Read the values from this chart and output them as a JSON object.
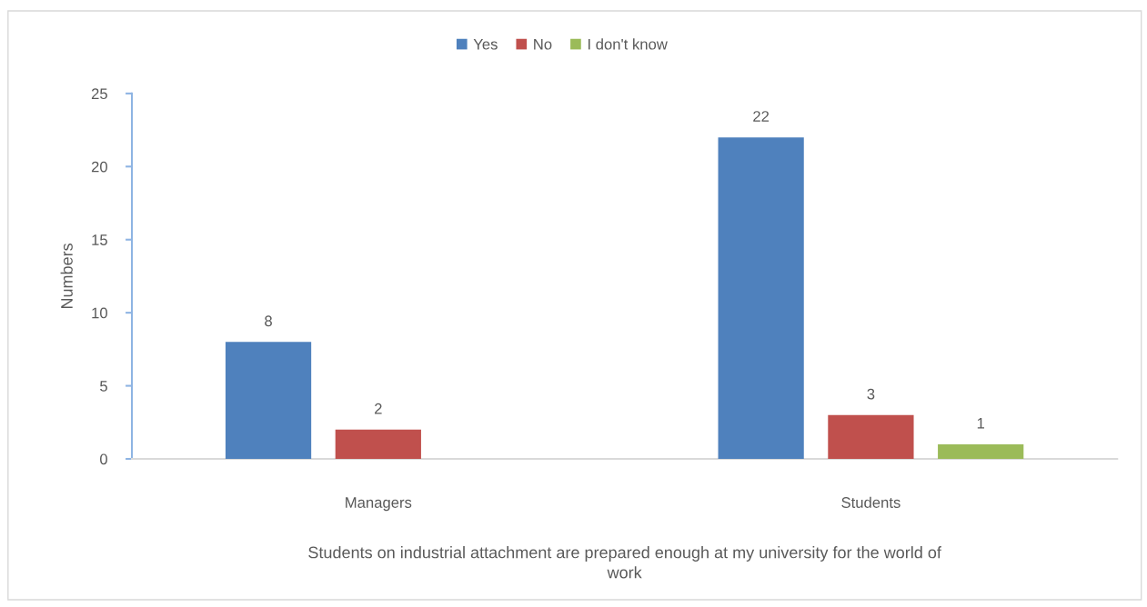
{
  "chart_data": {
    "type": "bar",
    "categories": [
      "Managers",
      "Students"
    ],
    "series": [
      {
        "name": "Yes",
        "color": "#4f81bd",
        "values": [
          8,
          22
        ]
      },
      {
        "name": "No",
        "color": "#c0504d",
        "values": [
          2,
          3
        ]
      },
      {
        "name": "I don't know",
        "color": "#9bbb59",
        "values": [
          null,
          1
        ]
      }
    ],
    "ylabel": "Numbers",
    "xlabel": "Students on industrial attachment are prepared enough at my university for the world of\nwork",
    "ylim": [
      0,
      25
    ],
    "yticks": [
      0,
      5,
      10,
      15,
      20,
      25
    ],
    "grid": false,
    "legend": "top",
    "data_labels": true
  }
}
